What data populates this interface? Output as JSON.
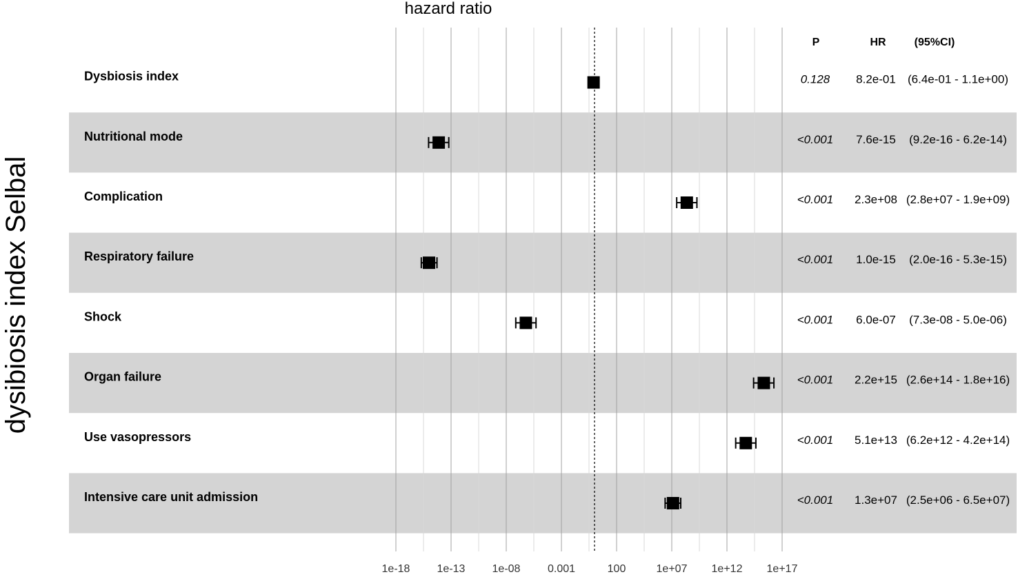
{
  "chart_data": {
    "type": "forest",
    "title": "hazard ratio",
    "side_label": "dysibiosis index Selbal",
    "xscale": "log10",
    "xlim": [
      1e-21,
      1e+18
    ],
    "reference_line": 1,
    "columns": {
      "p": "P",
      "hr": "HR",
      "ci": "(95%CI)"
    },
    "xticks": [
      {
        "value": 1e-18,
        "label": "1e-18"
      },
      {
        "value": 1e-13,
        "label": "1e-13"
      },
      {
        "value": 1e-08,
        "label": "1e-08"
      },
      {
        "value": 0.001,
        "label": "0.001"
      },
      {
        "value": 100,
        "label": "100"
      },
      {
        "value": 10000000.0,
        "label": "1e+07"
      },
      {
        "value": 1000000000000.0,
        "label": "1e+12"
      },
      {
        "value": 1e+17,
        "label": "1e+17"
      }
    ],
    "rows": [
      {
        "label": "Dysbiosis index",
        "p": "0.128",
        "hr_text": "8.2e-01",
        "ci_text": "(6.4e-01 - 1.1e+00)",
        "hr": 0.82,
        "lo": 0.64,
        "hi": 1.1
      },
      {
        "label": "Nutritional mode",
        "p": "<0.001",
        "hr_text": "7.6e-15",
        "ci_text": "(9.2e-16 - 6.2e-14)",
        "hr": 7.6e-15,
        "lo": 9.2e-16,
        "hi": 6.2e-14
      },
      {
        "label": "Complication",
        "p": "<0.001",
        "hr_text": "2.3e+08",
        "ci_text": "(2.8e+07 - 1.9e+09)",
        "hr": 230000000.0,
        "lo": 28000000.0,
        "hi": 1900000000.0
      },
      {
        "label": "Respiratory failure",
        "p": "<0.001",
        "hr_text": "1.0e-15",
        "ci_text": "(2.0e-16 - 5.3e-15)",
        "hr": 1e-15,
        "lo": 2e-16,
        "hi": 5.3e-15
      },
      {
        "label": "Shock",
        "p": "<0.001",
        "hr_text": "6.0e-07",
        "ci_text": "(7.3e-08 - 5.0e-06)",
        "hr": 6e-07,
        "lo": 7.3e-08,
        "hi": 5e-06
      },
      {
        "label": "Organ failure",
        "p": "<0.001",
        "hr_text": "2.2e+15",
        "ci_text": "(2.6e+14 - 1.8e+16)",
        "hr": 2200000000000000.0,
        "lo": 260000000000000.0,
        "hi": 1.8e+16
      },
      {
        "label": "Use vasopressors",
        "p": "<0.001",
        "hr_text": "5.1e+13",
        "ci_text": "(6.2e+12 - 4.2e+14)",
        "hr": 51000000000000.0,
        "lo": 6200000000000.0,
        "hi": 420000000000000.0
      },
      {
        "label": "Intensive care unit admission",
        "p": "<0.001",
        "hr_text": "1.3e+07",
        "ci_text": "(2.5e+06 - 6.5e+07)",
        "hr": 13000000.0,
        "lo": 2500000.0,
        "hi": 65000000.0
      }
    ],
    "colors": {
      "band": "#d4d4d4",
      "grid": "#a0a0a0",
      "marker": "#000000"
    }
  }
}
